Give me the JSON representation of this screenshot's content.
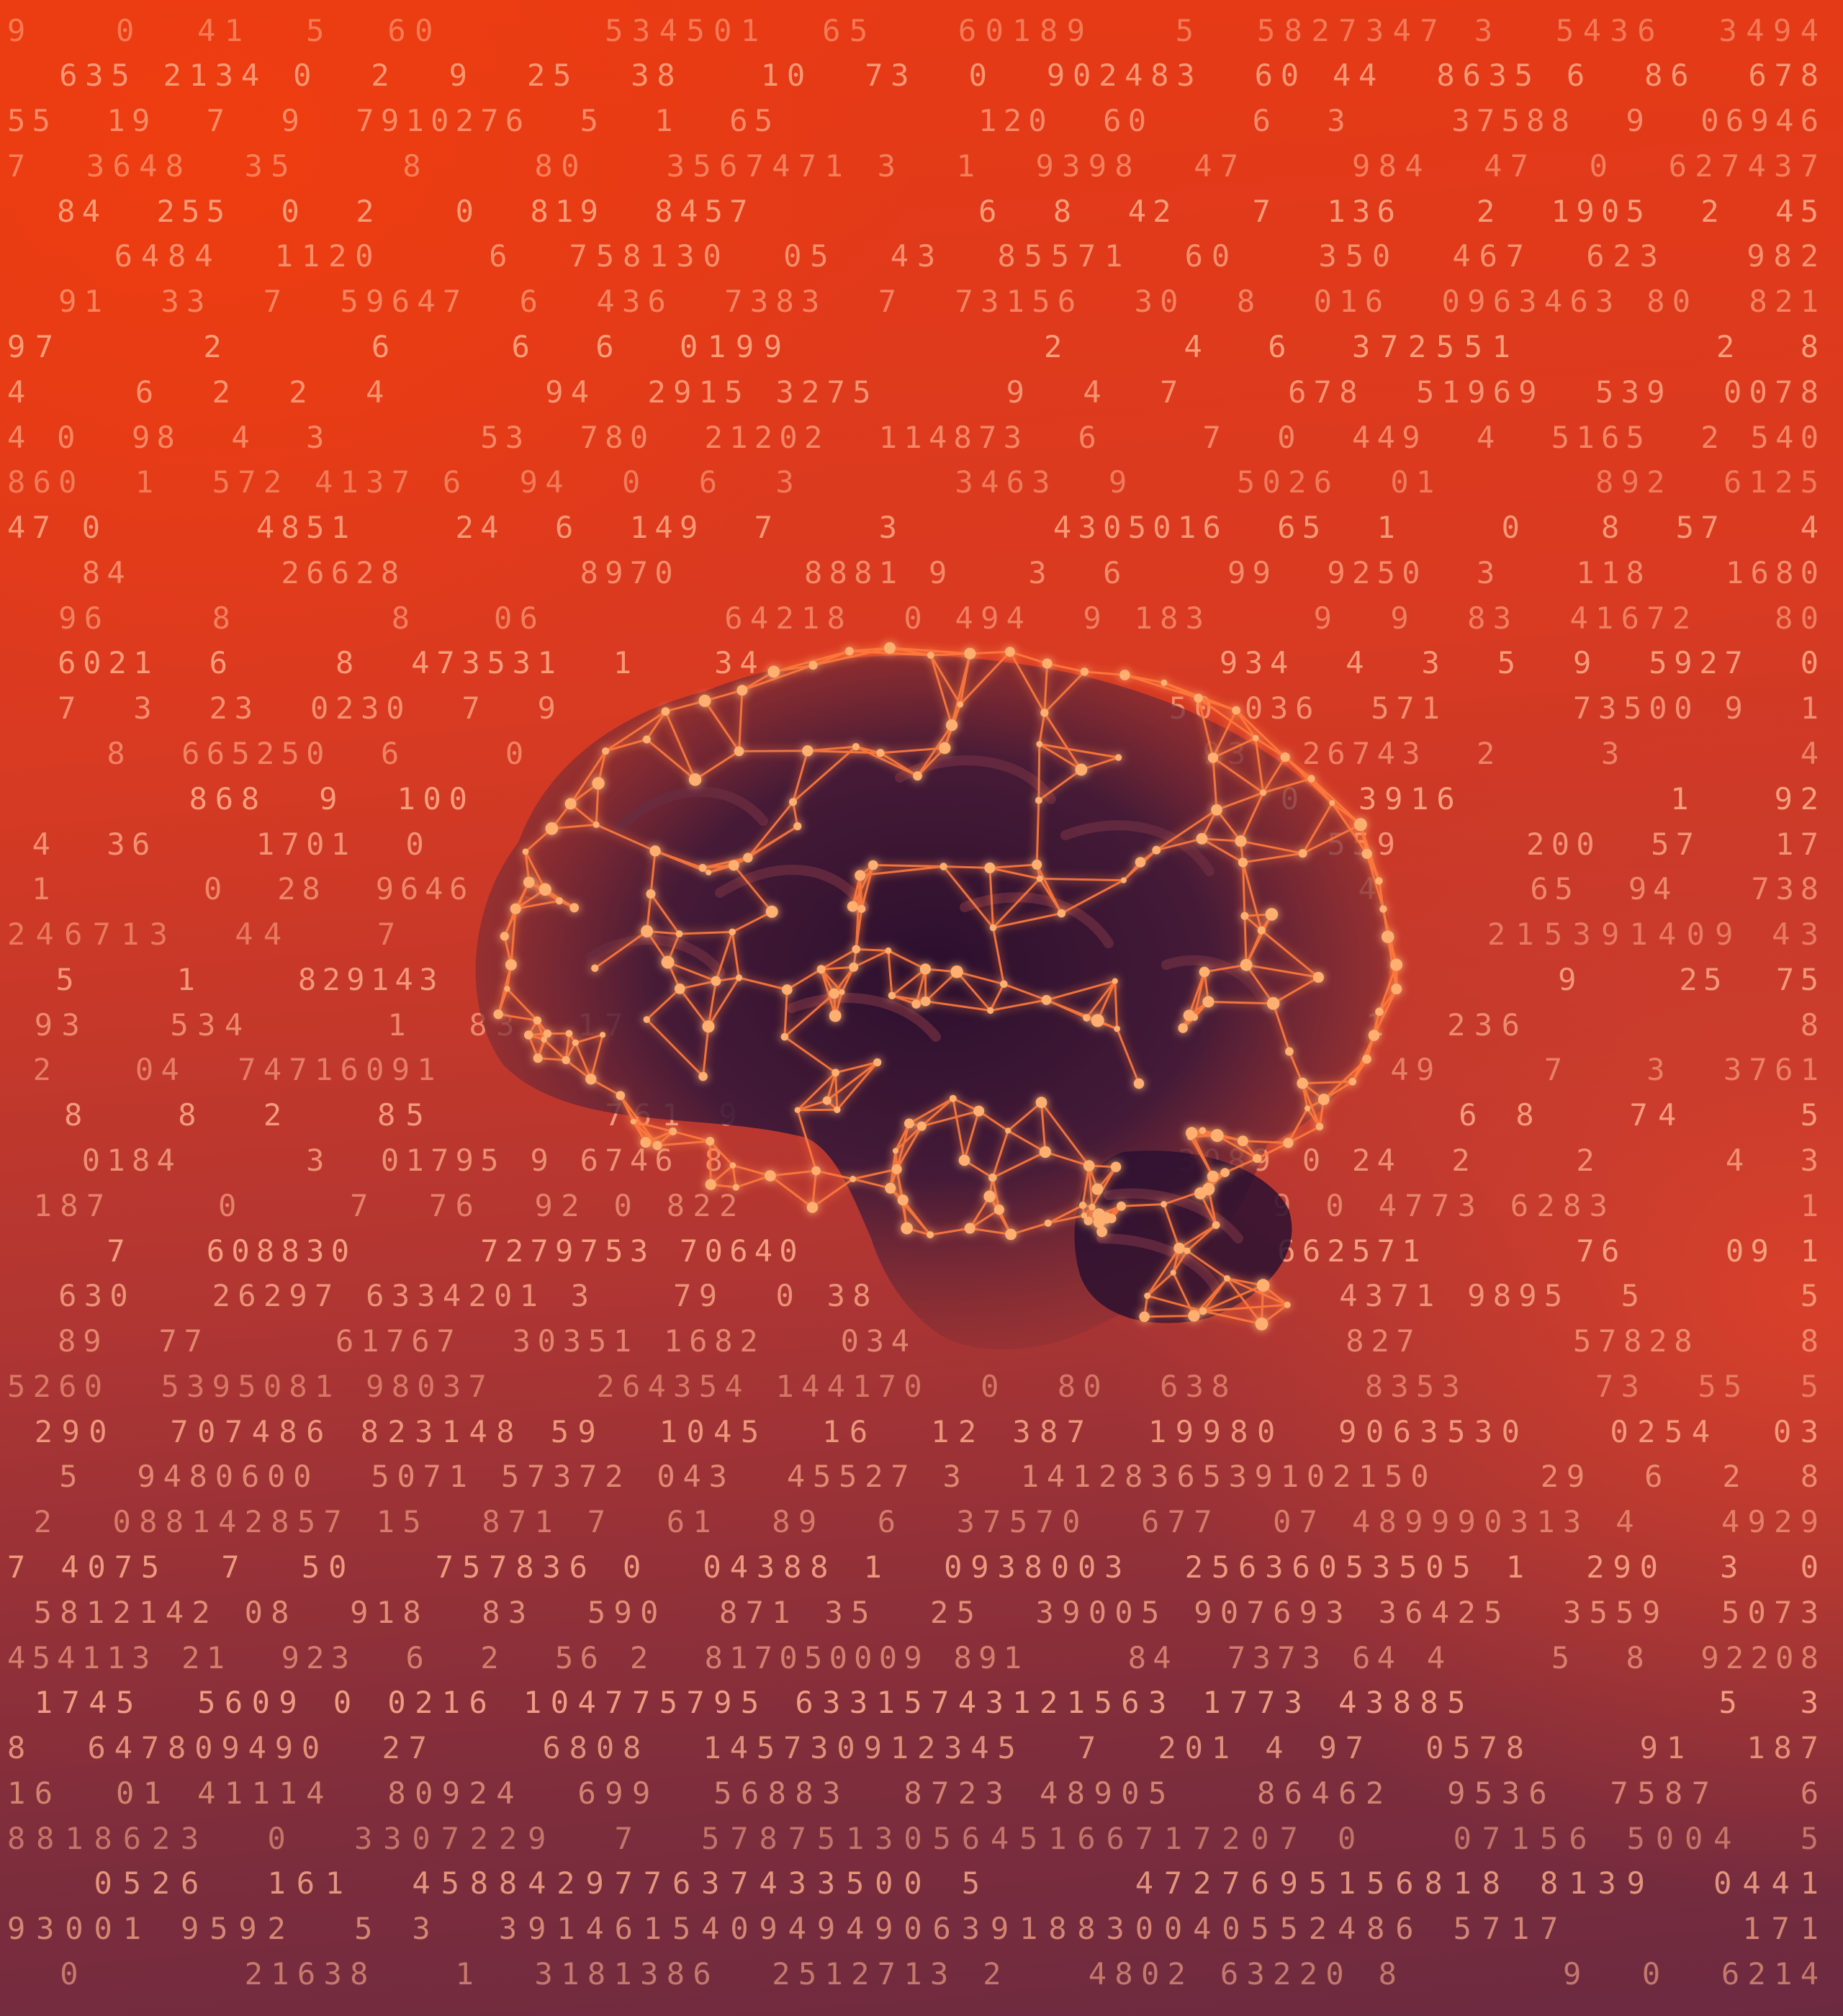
{
  "scene": {
    "subject": "brain",
    "palette": {
      "background_top": "#e83a14",
      "background_bottom": "#6c2a40",
      "digits": "#ffb08c",
      "network": "#ff7a3c",
      "brain_shadow": "#2a1030"
    }
  },
  "icons": [
    "brain-icon",
    "neural-network-icon"
  ],
  "digit_rows": [
    "9   0  41  5  60      534501  65   60189   5  5827347 3  5436  3494",
    "  635 2134 0  2  9  25  38   10  73  0  902483  60 44  8635 6  86  678",
    "55  19  7  9  7910276  5  1  65        120  60    6  3    37588  9  06946",
    "7  3648  35    8    80   3567471 3  1  9398  47    984  47  0  627437",
    "  84  255  0  2   0  819  8457         6  8  42   7  136   2  1905  2  45",
    "    6484  1120    6  758130  05  43  85571  60   350  467  623   982",
    "  91  33  7  59647  6  436  7383  7  73156  30  8  016  0963463 80  821",
    "97     2     6    6  6  0199         2    4  6  372551       2  8",
    "4    6  2  2  4      94  2915 3275     9  4  7    678  51969  539  0078",
    "4 0  98  4  3      53  780  21202  114873  6    7  0  449  4  5165  2 540",
    "860  1  572 4137 6  94  0  6  3      3463  9    5026  01      892  6125",
    "47 0      4851    24  6  149  7    3      4305016  65  1    0   8  57   4",
    "   84      26628       8970     8881 9   3  6    99  9250  3   118   1680",
    "  96    8      8   06       64218  0 494  9 183    9  9  83  41672   80",
    "  6021  6    8  473531  1   34                  934  4  3  5  9  5927  0",
    "  7  3  23  0230  7  9                        50 036  571     73500 9  1",
    "    8  665250  6    0                           93  26743  2    3       4",
    "       868  9  100                               0  3916        1   92",
    " 4  36    1701  0                                    559     200  57   17",
    " 1      0  28  9646  3                                 4      65  94   738",
    "246713  44   7                                      215391409 43",
    "  5    1    829143                                              9    25  75",
    " 93   534     1  83  17                           1  236          8",
    " 2   04  74716091                                     49    7   3  3761",
    "  8   8  2   85      761 9                         6 8   74    5",
    "   0184     3  01795 9 6746 8                  3089 0 24  2    2     4  3",
    " 187    0    7  76  92 0 822                    9 0 4773 6283       1",
    "    7   608830     7279753 70640                   662571      76    09 1",
    "  630   26297 6334201 3   79  0 38                  4371 9895  5      5",
    "  89  77     61767  30351 1682   034                 827      57828    8",
    "5260  5395081 98037    264354 144170  0  80  638     8353     73  55  5",
    " 290  707486 823148 59  1045  16  12 387  19980  9063530   0254  03",
    "  5  9480600  5071 57372 043  45527 3  1412836539102150    29  6  2  8",
    " 2  088142857 15  871 7  61  89  6  37570  677  07 489990313 4   4929",
    "7 4075  7  50   757836 0  04388 1  0938003  25636053505 1  290  3  0",
    " 5812142 08  918  83  590  871 35  25  39005 907693 36425  3559  5073",
    "454113 21  923  6  2  56 2  817050009 891    84  7373 64 4    5  8  92208",
    " 1745  5609 0 0216 104775795 63315743121563 1773 43885         5  3",
    "8  647809490  27    6808  145730912345  7  201 4 97  0578    91  187",
    "16  01 41114  80924  699  56883  8723 48905   86462  9536  7587   6",
    "8818623  0  3307229  7  578751305645166717207 0   07156 5004  5",
    "   0526  161  458842977637433500 5     4727695156818 8139  0441",
    "93001 9592  5 3  39146154094949063918830040552486 5717      171",
    "  0      21638   1  3181386  2512713 2   4802 63220 8      9  0  6214"
  ]
}
